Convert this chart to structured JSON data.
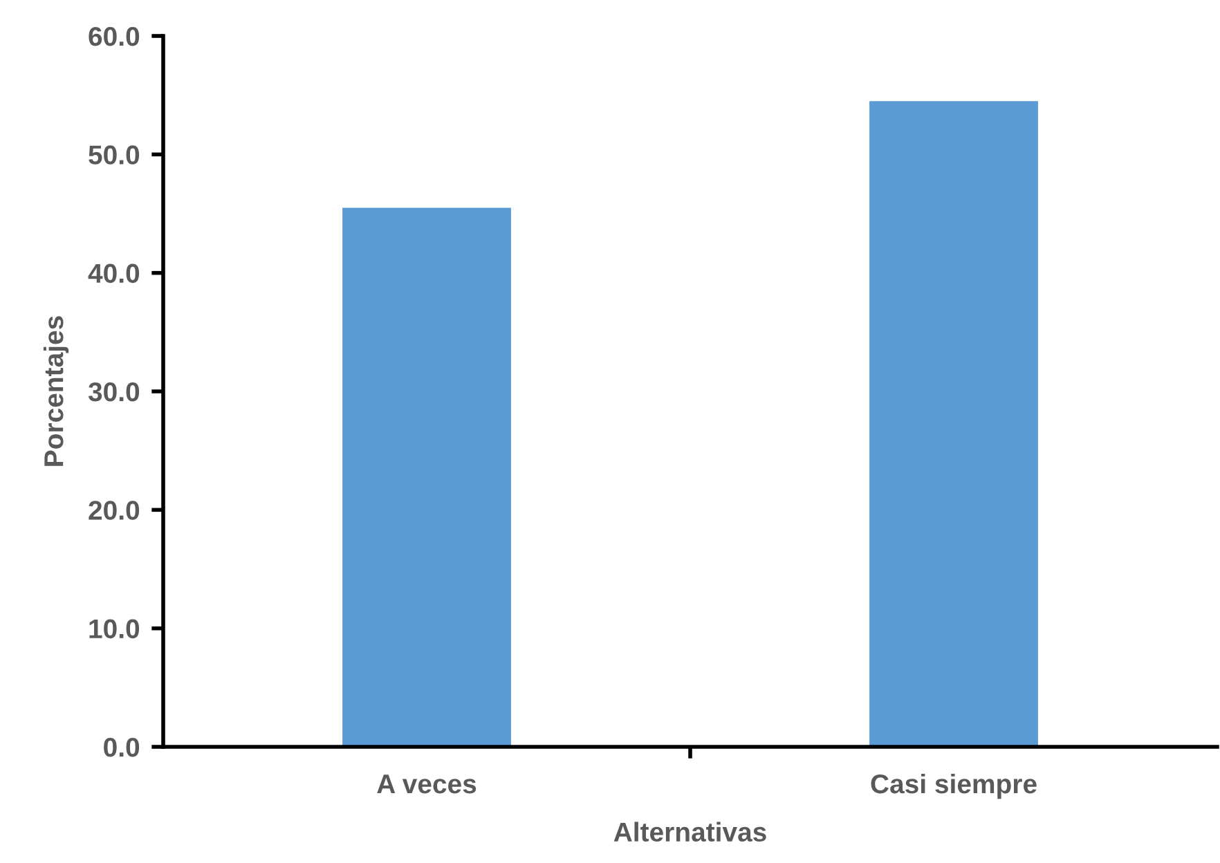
{
  "chart_data": {
    "type": "bar",
    "xlabel": "Alternativas",
    "ylabel": "Porcentajes",
    "categories": [
      "A veces",
      "Casi siempre"
    ],
    "values": [
      45.5,
      54.5
    ],
    "color": "#5b9bd5",
    "ylim": [
      0,
      60
    ],
    "yticks": [
      {
        "value": 0,
        "label": "0.0"
      },
      {
        "value": 10,
        "label": "10.0"
      },
      {
        "value": 20,
        "label": "20.0"
      },
      {
        "value": 30,
        "label": "30.0"
      },
      {
        "value": 40,
        "label": "40.0"
      },
      {
        "value": 50,
        "label": "50.0"
      },
      {
        "value": 60,
        "label": "60.0"
      }
    ],
    "grid": false,
    "legend": false
  }
}
